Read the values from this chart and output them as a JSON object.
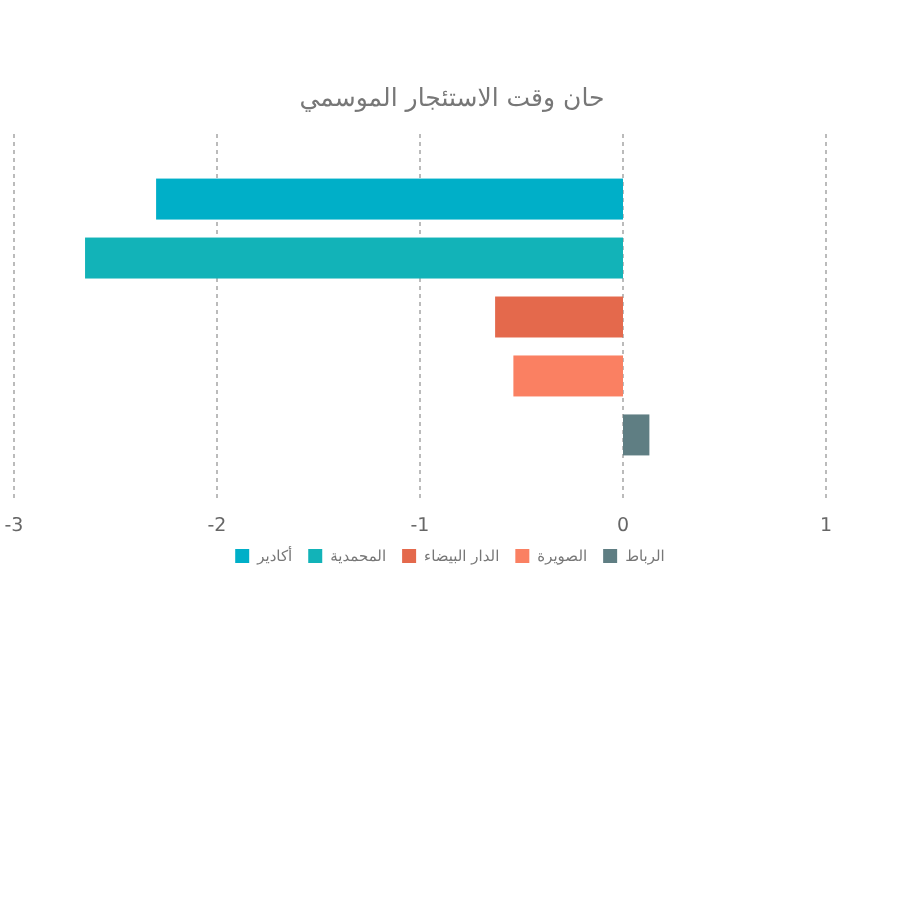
{
  "chart_data": {
    "type": "bar",
    "orientation": "horizontal",
    "title": "حان وقت الاستئجار الموسمي",
    "categories": [
      null
    ],
    "series": [
      {
        "name": "أكادير",
        "color": "#00afc8",
        "values": [
          -2.3
        ]
      },
      {
        "name": "المحمدية",
        "color": "#12b3b8",
        "values": [
          -2.65
        ]
      },
      {
        "name": "الدار البيضاء",
        "color": "#e4694c",
        "values": [
          -0.63
        ]
      },
      {
        "name": "الصويرة",
        "color": "#fa8062",
        "values": [
          -0.54
        ]
      },
      {
        "name": "الرباط",
        "color": "#5f7e83",
        "values": [
          0.13
        ]
      }
    ],
    "xlim": [
      -3,
      1
    ],
    "xticks": [
      -3,
      -2,
      -1,
      0,
      1
    ],
    "grid": "x",
    "legend": "bottom"
  }
}
